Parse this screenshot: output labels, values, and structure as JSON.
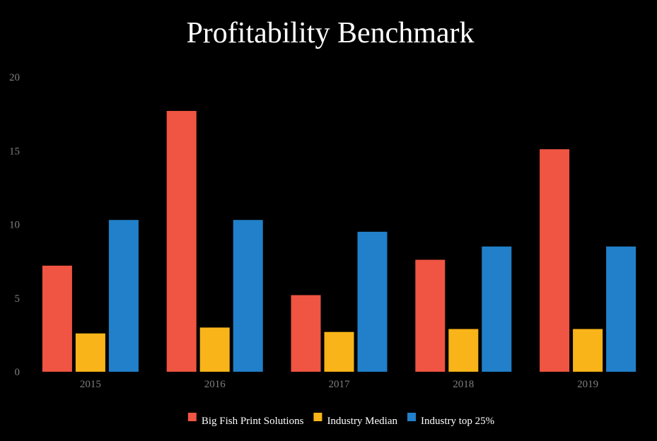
{
  "chart_data": {
    "type": "bar",
    "title": "Profitability Benchmark",
    "xlabel": "",
    "ylabel": "",
    "categories": [
      "2015",
      "2016",
      "2017",
      "2018",
      "2019"
    ],
    "ylim": [
      0,
      20
    ],
    "yticks": [
      0,
      5,
      10,
      15,
      20
    ],
    "grid": false,
    "legend_position": "bottom-center",
    "series": [
      {
        "name": "Big Fish Print Solutions",
        "color": "#f05442",
        "values": [
          7.2,
          17.7,
          5.2,
          7.6,
          15.1
        ]
      },
      {
        "name": "Industry Median",
        "color": "#f8b418",
        "values": [
          2.6,
          3.0,
          2.7,
          2.9,
          2.9
        ]
      },
      {
        "name": "Industry top 25%",
        "color": "#2180c9",
        "values": [
          10.3,
          10.3,
          9.5,
          8.5,
          8.5
        ]
      }
    ]
  }
}
